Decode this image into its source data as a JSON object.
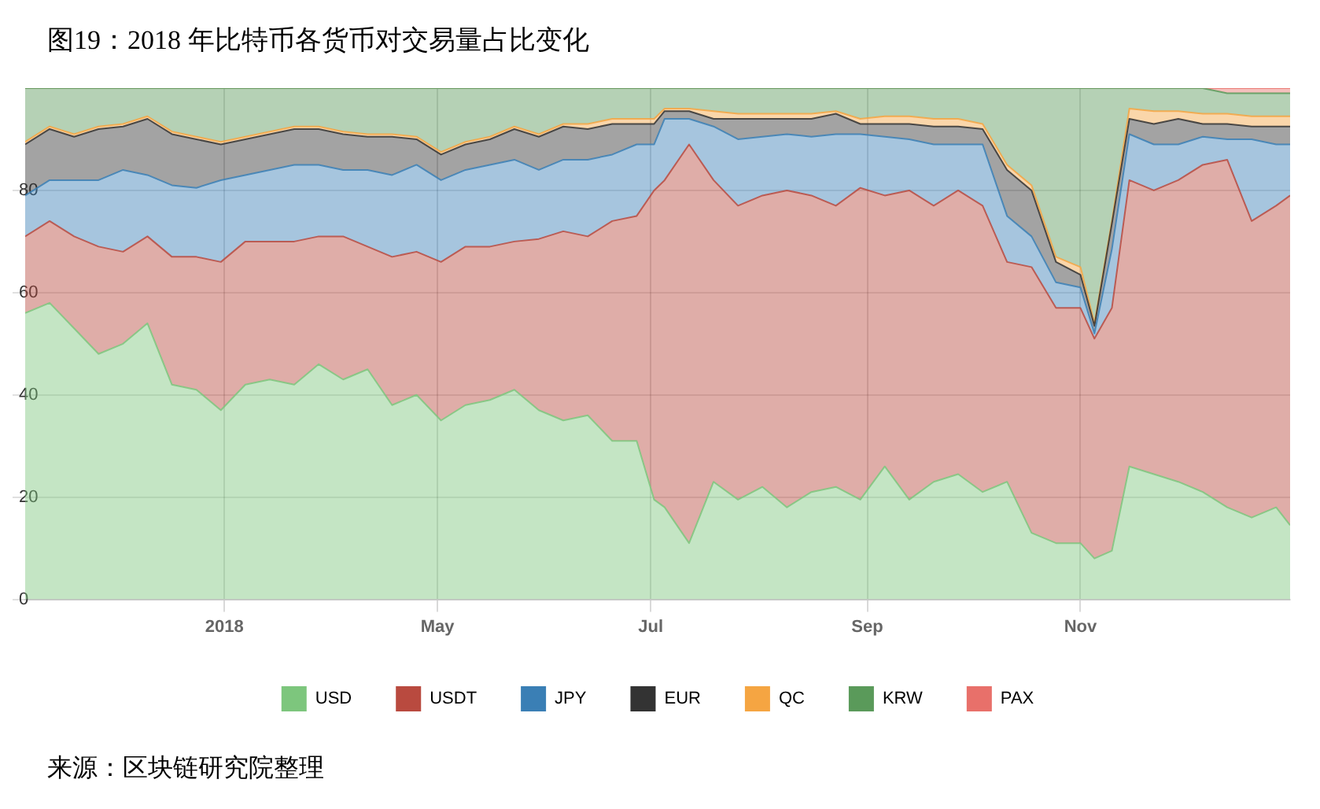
{
  "chart_data": {
    "type": "area",
    "title": "图19：2018 年比特币各货币对交易量占比变化",
    "annotations": [
      "来源：区块链研究院整理"
    ],
    "stacked": true,
    "grid": true,
    "legend": "bottom",
    "x": [
      "2018-01-03",
      "2018-01-10",
      "2018-01-17",
      "2018-01-24",
      "2018-01-31",
      "2018-02-07",
      "2018-02-14",
      "2018-02-21",
      "2018-02-28",
      "2018-03-07",
      "2018-03-14",
      "2018-03-21",
      "2018-03-28",
      "2018-04-04",
      "2018-04-11",
      "2018-04-18",
      "2018-04-25",
      "2018-05-02",
      "2018-05-09",
      "2018-05-16",
      "2018-05-23",
      "2018-05-30",
      "2018-06-06",
      "2018-06-13",
      "2018-06-20",
      "2018-06-27",
      "2018-07-02",
      "2018-07-05",
      "2018-07-12",
      "2018-07-19",
      "2018-07-26",
      "2018-08-02",
      "2018-08-09",
      "2018-08-16",
      "2018-08-23",
      "2018-08-30",
      "2018-09-06",
      "2018-09-13",
      "2018-09-20",
      "2018-09-27",
      "2018-10-04",
      "2018-10-11",
      "2018-10-18",
      "2018-10-25",
      "2018-11-01",
      "2018-11-05",
      "2018-11-10",
      "2018-11-15",
      "2018-11-22",
      "2018-11-29",
      "2018-12-06",
      "2018-12-13",
      "2018-12-20",
      "2018-12-27",
      "2018-12-31"
    ],
    "xlim": [
      "2018-01-03",
      "2018-12-31"
    ],
    "xticks": [
      {
        "value": "2018-03-01",
        "label": "2018"
      },
      {
        "value": "2018-05-01",
        "label": "May"
      },
      {
        "value": "2018-07-01",
        "label": "Jul"
      },
      {
        "value": "2018-09-01",
        "label": "Sep"
      },
      {
        "value": "2018-11-01",
        "label": "Nov"
      }
    ],
    "ylim": [
      0,
      100
    ],
    "yticks": [
      0,
      20,
      40,
      60,
      80
    ],
    "series": [
      {
        "name": "USD",
        "color": "#7dc67d",
        "values": [
          56,
          58,
          53,
          48,
          50,
          54,
          42,
          41,
          37,
          42,
          43,
          42,
          46,
          43,
          45,
          38,
          40,
          35,
          38,
          39,
          41,
          37,
          35,
          36,
          31,
          31,
          19.5,
          18,
          11,
          23,
          19.5,
          22,
          18,
          21,
          22,
          19.5,
          26,
          19.5,
          23,
          24.5,
          21,
          23,
          13,
          11,
          11,
          8,
          9.5,
          26,
          24.5,
          23,
          21,
          18,
          16,
          18,
          14.5
        ]
      },
      {
        "name": "USDT",
        "color": "#b94a3f",
        "values": [
          15,
          16,
          18,
          21,
          18,
          17,
          25,
          26,
          29,
          28,
          27,
          28,
          25,
          28,
          24,
          29,
          28,
          31,
          31,
          30,
          29,
          33.5,
          37,
          35,
          43,
          44,
          60.5,
          64,
          78,
          59,
          57.5,
          57,
          62,
          58,
          55,
          61,
          53,
          60.5,
          54,
          55.5,
          56,
          43,
          52,
          46,
          46,
          43,
          47.5,
          56,
          55.5,
          59,
          64,
          68,
          58,
          59,
          64.5
        ]
      },
      {
        "name": "JPY",
        "color": "#3a7fb5",
        "values": [
          8,
          8,
          11,
          13,
          16,
          12,
          14,
          13.5,
          16,
          13,
          14,
          15,
          14,
          13,
          15,
          16,
          17,
          16,
          15,
          16,
          16,
          13.5,
          14,
          15,
          13,
          14,
          9,
          12,
          5,
          10.5,
          13,
          11.5,
          11,
          11.5,
          14,
          10.5,
          11.5,
          10,
          12,
          9,
          12,
          9,
          6,
          5,
          4,
          1,
          11.5,
          9,
          9,
          7,
          5.5,
          4,
          16,
          12,
          10
        ]
      },
      {
        "name": "EUR",
        "color": "#333333",
        "values": [
          10,
          10,
          8.5,
          10,
          8.5,
          11,
          10,
          9.5,
          7,
          7,
          7,
          7,
          7,
          7,
          6.5,
          7.5,
          5,
          5,
          5,
          5,
          6,
          6.5,
          6.5,
          6,
          6,
          4,
          4,
          1.5,
          1.5,
          1.5,
          4,
          3.5,
          3,
          3.5,
          4,
          2,
          2.5,
          3,
          3.5,
          3.5,
          3,
          9,
          9,
          4,
          2.5,
          1.5,
          5,
          3,
          4,
          5,
          2.5,
          3,
          2.5,
          3.5,
          3.5
        ]
      },
      {
        "name": "QC",
        "color": "#f5a542",
        "values": [
          0.5,
          0.5,
          0.5,
          0.5,
          0.5,
          0.5,
          0.5,
          0.5,
          0.5,
          0.5,
          0.5,
          0.5,
          0.5,
          0.5,
          0.5,
          0.5,
          0.5,
          0.5,
          0.5,
          0.5,
          0.5,
          0.5,
          0.5,
          1,
          1,
          1,
          1,
          0.5,
          0.5,
          1.5,
          1,
          1,
          1,
          1,
          0.5,
          1,
          1.5,
          1.5,
          1.5,
          1.5,
          1,
          1,
          1,
          1,
          1.5,
          0.5,
          0.5,
          2,
          2.5,
          1.5,
          2,
          2,
          2,
          2,
          2
        ]
      },
      {
        "name": "KRW",
        "color": "#5a9a5a",
        "values": [
          10.5,
          7.5,
          9,
          7.5,
          7,
          5.5,
          8.5,
          9.5,
          10.5,
          9.5,
          8.5,
          7.5,
          7.5,
          8.5,
          9,
          9,
          9.5,
          12.5,
          10.5,
          9.5,
          7.5,
          9,
          7,
          7,
          6,
          6,
          6,
          4,
          4,
          4.5,
          5,
          5,
          5,
          5,
          4.5,
          6,
          5.5,
          5.5,
          6,
          6,
          7,
          15,
          19,
          33,
          35,
          46,
          26,
          4,
          4.5,
          4.5,
          5,
          4,
          4.5,
          4.5,
          4.5
        ]
      },
      {
        "name": "PAX",
        "color": "#e8706a",
        "values": [
          0,
          0,
          0,
          0,
          0,
          0,
          0,
          0,
          0,
          0,
          0,
          0,
          0,
          0,
          0,
          0,
          0,
          0,
          0,
          0,
          0,
          0,
          0,
          0,
          0,
          0,
          0,
          0,
          0,
          0,
          0,
          0,
          0,
          0,
          0,
          0,
          0,
          0,
          0,
          0,
          0,
          0,
          0,
          0,
          0,
          0,
          0,
          0,
          0,
          0,
          0,
          1,
          1,
          1,
          1
        ]
      }
    ]
  }
}
